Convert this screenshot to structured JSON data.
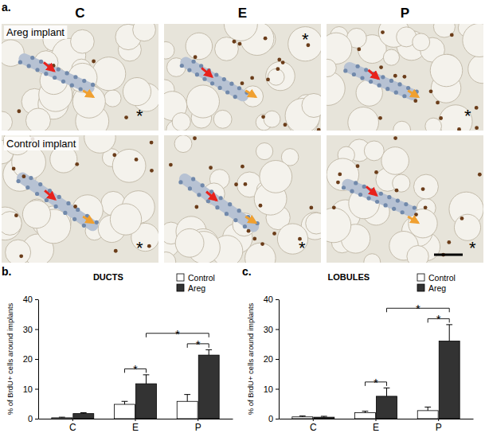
{
  "figure": {
    "panel_labels": [
      "a.",
      "b.",
      "c."
    ],
    "columns": [
      "C",
      "E",
      "P"
    ],
    "rows": [
      "Areg implant",
      "Control implant"
    ],
    "image_marks": [
      "*",
      "*",
      "*",
      "*",
      "*",
      "*"
    ]
  },
  "chart_data": [
    {
      "type": "bar",
      "title": "DUCTS",
      "categories": [
        "C",
        "E",
        "P"
      ],
      "series": [
        {
          "name": "Control",
          "color": "#ffffff",
          "values": [
            0.3,
            4.8,
            5.8
          ],
          "errors": [
            0.2,
            1.0,
            2.3
          ]
        },
        {
          "name": "Areg",
          "color": "#333333",
          "values": [
            1.7,
            11.7,
            21.3
          ],
          "errors": [
            0.3,
            3.0,
            1.8
          ]
        }
      ],
      "y_label": "% of BrdU+ cells around implants",
      "ylim": [
        0,
        40
      ],
      "yticks": [
        0,
        10,
        20,
        30,
        40
      ],
      "legend": "upper right",
      "annotations": [
        "*",
        "*",
        "*"
      ]
    },
    {
      "type": "bar",
      "title": "LOBULES",
      "categories": [
        "C",
        "E",
        "P"
      ],
      "series": [
        {
          "name": "Control",
          "color": "#ffffff",
          "values": [
            0.6,
            2.0,
            2.7
          ],
          "errors": [
            0.3,
            0.5,
            1.2
          ]
        },
        {
          "name": "Areg",
          "color": "#333333",
          "values": [
            0.5,
            7.5,
            26.0
          ],
          "errors": [
            0.3,
            2.8,
            5.5
          ]
        }
      ],
      "y_label": "% of BrdU+ cells around implants",
      "ylim": [
        0,
        40
      ],
      "yticks": [
        0,
        10,
        20,
        30,
        40
      ],
      "legend": "upper right",
      "annotations": [
        "*",
        "*",
        "*"
      ]
    }
  ]
}
